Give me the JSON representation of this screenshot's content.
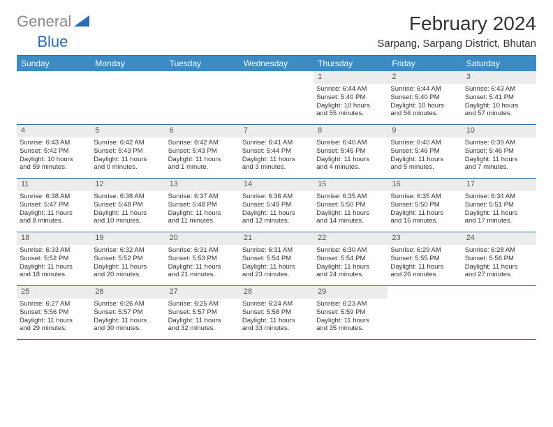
{
  "colors": {
    "header_blue": "#2a6db0",
    "weekday_bg": "#3b8bc4",
    "weekday_fg": "#ffffff",
    "daynum_bg": "#ececec",
    "text": "#333333",
    "logo_gray": "#888888",
    "page_bg": "#ffffff",
    "rule": "#2a6db0"
  },
  "fonts": {
    "title_size_pt": 28,
    "location_size_pt": 15,
    "weekday_size_pt": 12,
    "daynum_size_pt": 11,
    "cell_size_pt": 9.5
  },
  "logo": {
    "part1": "General",
    "part2": "Blue"
  },
  "title": "February 2024",
  "location": "Sarpang, Sarpang District, Bhutan",
  "weekdays": [
    "Sunday",
    "Monday",
    "Tuesday",
    "Wednesday",
    "Thursday",
    "Friday",
    "Saturday"
  ],
  "layout": {
    "columns": 7,
    "rows": 5,
    "leading_blanks": 4
  },
  "days": [
    {
      "n": "1",
      "sr": "Sunrise: 6:44 AM",
      "ss": "Sunset: 5:40 PM",
      "d1": "Daylight: 10 hours",
      "d2": "and 55 minutes."
    },
    {
      "n": "2",
      "sr": "Sunrise: 6:44 AM",
      "ss": "Sunset: 5:40 PM",
      "d1": "Daylight: 10 hours",
      "d2": "and 56 minutes."
    },
    {
      "n": "3",
      "sr": "Sunrise: 6:43 AM",
      "ss": "Sunset: 5:41 PM",
      "d1": "Daylight: 10 hours",
      "d2": "and 57 minutes."
    },
    {
      "n": "4",
      "sr": "Sunrise: 6:43 AM",
      "ss": "Sunset: 5:42 PM",
      "d1": "Daylight: 10 hours",
      "d2": "and 59 minutes."
    },
    {
      "n": "5",
      "sr": "Sunrise: 6:42 AM",
      "ss": "Sunset: 5:43 PM",
      "d1": "Daylight: 11 hours",
      "d2": "and 0 minutes."
    },
    {
      "n": "6",
      "sr": "Sunrise: 6:42 AM",
      "ss": "Sunset: 5:43 PM",
      "d1": "Daylight: 11 hours",
      "d2": "and 1 minute."
    },
    {
      "n": "7",
      "sr": "Sunrise: 6:41 AM",
      "ss": "Sunset: 5:44 PM",
      "d1": "Daylight: 11 hours",
      "d2": "and 3 minutes."
    },
    {
      "n": "8",
      "sr": "Sunrise: 6:40 AM",
      "ss": "Sunset: 5:45 PM",
      "d1": "Daylight: 11 hours",
      "d2": "and 4 minutes."
    },
    {
      "n": "9",
      "sr": "Sunrise: 6:40 AM",
      "ss": "Sunset: 5:46 PM",
      "d1": "Daylight: 11 hours",
      "d2": "and 5 minutes."
    },
    {
      "n": "10",
      "sr": "Sunrise: 6:39 AM",
      "ss": "Sunset: 5:46 PM",
      "d1": "Daylight: 11 hours",
      "d2": "and 7 minutes."
    },
    {
      "n": "11",
      "sr": "Sunrise: 6:38 AM",
      "ss": "Sunset: 5:47 PM",
      "d1": "Daylight: 11 hours",
      "d2": "and 8 minutes."
    },
    {
      "n": "12",
      "sr": "Sunrise: 6:38 AM",
      "ss": "Sunset: 5:48 PM",
      "d1": "Daylight: 11 hours",
      "d2": "and 10 minutes."
    },
    {
      "n": "13",
      "sr": "Sunrise: 6:37 AM",
      "ss": "Sunset: 5:48 PM",
      "d1": "Daylight: 11 hours",
      "d2": "and 11 minutes."
    },
    {
      "n": "14",
      "sr": "Sunrise: 6:36 AM",
      "ss": "Sunset: 5:49 PM",
      "d1": "Daylight: 11 hours",
      "d2": "and 12 minutes."
    },
    {
      "n": "15",
      "sr": "Sunrise: 6:35 AM",
      "ss": "Sunset: 5:50 PM",
      "d1": "Daylight: 11 hours",
      "d2": "and 14 minutes."
    },
    {
      "n": "16",
      "sr": "Sunrise: 6:35 AM",
      "ss": "Sunset: 5:50 PM",
      "d1": "Daylight: 11 hours",
      "d2": "and 15 minutes."
    },
    {
      "n": "17",
      "sr": "Sunrise: 6:34 AM",
      "ss": "Sunset: 5:51 PM",
      "d1": "Daylight: 11 hours",
      "d2": "and 17 minutes."
    },
    {
      "n": "18",
      "sr": "Sunrise: 6:33 AM",
      "ss": "Sunset: 5:52 PM",
      "d1": "Daylight: 11 hours",
      "d2": "and 18 minutes."
    },
    {
      "n": "19",
      "sr": "Sunrise: 6:32 AM",
      "ss": "Sunset: 5:52 PM",
      "d1": "Daylight: 11 hours",
      "d2": "and 20 minutes."
    },
    {
      "n": "20",
      "sr": "Sunrise: 6:31 AM",
      "ss": "Sunset: 5:53 PM",
      "d1": "Daylight: 11 hours",
      "d2": "and 21 minutes."
    },
    {
      "n": "21",
      "sr": "Sunrise: 6:31 AM",
      "ss": "Sunset: 5:54 PM",
      "d1": "Daylight: 11 hours",
      "d2": "and 23 minutes."
    },
    {
      "n": "22",
      "sr": "Sunrise: 6:30 AM",
      "ss": "Sunset: 5:54 PM",
      "d1": "Daylight: 11 hours",
      "d2": "and 24 minutes."
    },
    {
      "n": "23",
      "sr": "Sunrise: 6:29 AM",
      "ss": "Sunset: 5:55 PM",
      "d1": "Daylight: 11 hours",
      "d2": "and 26 minutes."
    },
    {
      "n": "24",
      "sr": "Sunrise: 6:28 AM",
      "ss": "Sunset: 5:56 PM",
      "d1": "Daylight: 11 hours",
      "d2": "and 27 minutes."
    },
    {
      "n": "25",
      "sr": "Sunrise: 6:27 AM",
      "ss": "Sunset: 5:56 PM",
      "d1": "Daylight: 11 hours",
      "d2": "and 29 minutes."
    },
    {
      "n": "26",
      "sr": "Sunrise: 6:26 AM",
      "ss": "Sunset: 5:57 PM",
      "d1": "Daylight: 11 hours",
      "d2": "and 30 minutes."
    },
    {
      "n": "27",
      "sr": "Sunrise: 6:25 AM",
      "ss": "Sunset: 5:57 PM",
      "d1": "Daylight: 11 hours",
      "d2": "and 32 minutes."
    },
    {
      "n": "28",
      "sr": "Sunrise: 6:24 AM",
      "ss": "Sunset: 5:58 PM",
      "d1": "Daylight: 11 hours",
      "d2": "and 33 minutes."
    },
    {
      "n": "29",
      "sr": "Sunrise: 6:23 AM",
      "ss": "Sunset: 5:59 PM",
      "d1": "Daylight: 11 hours",
      "d2": "and 35 minutes."
    }
  ]
}
